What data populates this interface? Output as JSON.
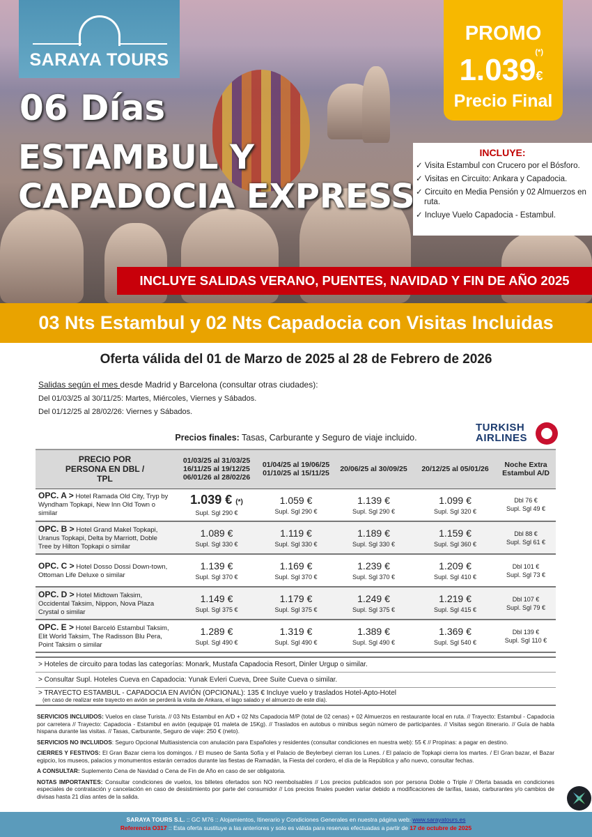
{
  "brand": {
    "name": "SARAYA TOURS"
  },
  "hero": {
    "days": "06 Días",
    "title_line1": "ESTAMBUL Y",
    "title_line2": "CAPADOCIA EXPRESS"
  },
  "promo": {
    "label": "PROMO",
    "asterisk": "(*)",
    "price": "1.039",
    "currency": "€",
    "subtitle": "Precio Final"
  },
  "includes": {
    "title": "INCLUYE:",
    "items": [
      "✓ Visita Estambul con Crucero por el Bósforo.",
      "✓ Visitas en Circuito: Ankara y Capadocia.",
      "✓ Circuito en Media Pensión y 02 Almuerzos en ruta.",
      "✓ Incluye Vuelo Capadocia - Estambul."
    ]
  },
  "red_banner": "INCLUYE SALIDAS VERANO, PUENTES, NAVIDAD Y FIN DE AÑO 2025",
  "orange_banner": "03 Nts Estambul y 02 Nts Capadocia con Visitas Incluidas",
  "validity": "Oferta válida del 01 de Marzo de 2025 al 28 de Febrero de 2026",
  "departures": {
    "intro_underlined": "Salidas según el mes ",
    "intro_rest": "desde Madrid y Barcelona (consultar otras ciudades):",
    "line1": "Del 01/03/25 al 30/11/25: Martes, Miércoles, Viernes y Sábados.",
    "line2": "Del 01/12/25 al 28/02/26: Viernes y Sábados."
  },
  "prices_note": {
    "bold": "Precios finales:",
    "rest": " Tasas, Carburante y Seguro de viaje incluido."
  },
  "airline": {
    "line1": "TURKISH",
    "line2": "AIRLINES",
    "color": "#c8102e"
  },
  "table": {
    "headers": [
      "PRECIO POR PERSONA EN DBL / TPL",
      "01/03/25 al 31/03/25\n16/11/25 al 19/12/25\n06/01/26 al 28/02/26",
      "01/04/25 al 19/06/25\n01/10/25 al 15/11/25",
      "20/06/25 al 30/09/25",
      "20/12/25 al 05/01/26",
      "Noche Extra\nEstambul A/D"
    ],
    "rows": [
      {
        "opt": "OPC. A >",
        "hotels": "Hotel Ramada Old City, Tryp by Wyndham Topkapi, New Inn Old Town o similar",
        "prices": [
          [
            "1.039 €",
            "Supl. Sgl 290 €"
          ],
          [
            "1.059 €",
            "Supl. Sgl 290 €"
          ],
          [
            "1.139 €",
            "Supl. Sgl 290 €"
          ],
          [
            "1.099 €",
            "Supl. Sgl 320 €"
          ]
        ],
        "extra": [
          "Dbl 76 €",
          "Supl. Sgl 49 €"
        ],
        "mark": "(*)"
      },
      {
        "opt": "OPC. B >",
        "hotels": "Hotel Grand Makel Topkapi, Uranus Topkapi, Delta by Marriott, Doble Tree by Hilton Topkapi o similar",
        "prices": [
          [
            "1.089 €",
            "Supl. Sgl 330 €"
          ],
          [
            "1.119 €",
            "Supl. Sgl 330 €"
          ],
          [
            "1.189 €",
            "Supl. Sgl 330 €"
          ],
          [
            "1.159 €",
            "Supl. Sgl 360 €"
          ]
        ],
        "extra": [
          "Dbl 88 €",
          "Supl. Sgl 61 €"
        ]
      },
      {
        "opt": "OPC. C >",
        "hotels": "Hotel Dosso Dossi Down-town, Ottoman Life Deluxe o similar",
        "prices": [
          [
            "1.139 €",
            "Supl. Sgl 370 €"
          ],
          [
            "1.169 €",
            "Supl. Sgl 370 €"
          ],
          [
            "1.239 €",
            "Supl. Sgl 370 €"
          ],
          [
            "1.209 €",
            "Supl. Sgl 410 €"
          ]
        ],
        "extra": [
          "Dbl 101 €",
          "Supl. Sgl 73 €"
        ]
      },
      {
        "opt": "OPC. D >",
        "hotels": "Hotel Midtown Taksim, Occidental Taksim, Nippon, Nova Plaza Crystal o similar",
        "prices": [
          [
            "1.149 €",
            "Supl. Sgl 375 €"
          ],
          [
            "1.179 €",
            "Supl. Sgl 375 €"
          ],
          [
            "1.249 €",
            "Supl. Sgl 375 €"
          ],
          [
            "1.219 €",
            "Supl. Sgl 415 €"
          ]
        ],
        "extra": [
          "Dbl 107 €",
          "Supl. Sgl 79 €"
        ]
      },
      {
        "opt": "OPC. E >",
        "hotels": "Hotel Barceló Estambul Taksim, Elit World Taksim, The Radisson Blu Pera, Point Taksim o similar",
        "prices": [
          [
            "1.289 €",
            "Supl. Sgl 490 €"
          ],
          [
            "1.319 €",
            "Supl. Sgl 490 €"
          ],
          [
            "1.389 €",
            "Supl. Sgl 490 €"
          ],
          [
            "1.369 €",
            "Supl. Sgl 540 €"
          ]
        ],
        "extra": [
          "Dbl 139 €",
          "Supl. Sgl 110 €"
        ]
      }
    ]
  },
  "notes": [
    "> Hoteles de circuito para todas las categorías: Monark, Mustafa Capadocia Resort, Dinler Urgup o similar.",
    "> Consultar Supl. Hoteles Cueva en Capadocia: Yunak Evleri Cueva, Dree Suite Cueva o similar.",
    "> TRAYECTO ESTAMBUL - CAPADOCIA EN AVIÓN (OPCIONAL): 135 € Incluye vuelo y traslados Hotel-Apto-Hotel"
  ],
  "notes_sub": "(en caso de realizar este trayecto en avión se perderá la visita de Ankara, el lago salado y el almuerzo de este día).",
  "fine_print": [
    {
      "label": "SERVICIOS INCLUIDOS:",
      "text": " Vuelos en clase Turista. // 03 Nts Estambul en A/D + 02 Nts Capadocia M/P (total de 02 cenas) + 02 Almuerzos en restaurante local en ruta. // Trayecto: Estambul - Capadocia por carretera // Trayecto: Capadocia - Estambul en avión (equipaje 01 maleta de 15Kg). // Traslados en autobus o minibus según número de participantes. // Visitas según itinerario. // Guía de habla hispana durante las visitas. // Tasas, Carburante, Seguro de viaje: 250 € (neto)."
    },
    {
      "label": "SERVICIOS NO INCLUIDOS",
      "text": ": Seguro Opcional Multiasistencia con anulación para Españoles y residentes (consultar condiciones en nuestra web): 55 € // Propinas: a pagar en destino."
    },
    {
      "label": "CIERRES Y FESTIVOS:",
      "text": " El Gran Bazar cierra los domingos. / El museo de Santa Sofía y el Palacio de Beylerbeyi cierran los Lunes. / El palacio de Topkapi cierra los martes. / El Gran bazar, el Bazar egipcio, los museos, palacios y monumentos estarán cerrados durante las fiestas de Ramadán, la Fiesta del cordero, el día de la República y año nuevo, consultar fechas."
    },
    {
      "label": "A CONSULTAR:",
      "text": " Suplemento Cena de Navidad o Cena de Fin de Año en caso de ser obligatoria."
    },
    {
      "label": "NOTAS IMPORTANTES:",
      "text": " Consultar condiciones de vuelos, los billetes ofertados son NO reembolsables // Los precios publicados son por persona Doble o Triple // Oferta basada en condiciones especiales de contratación y cancelación en caso de desistimiento por parte del consumidor // Los precios finales pueden variar debido a modificaciones de tarifas, tasas, carburantes y/o cambios de divisas hasta 21 días antes de la salida."
    }
  ],
  "footer": {
    "company": "SARAYA TOURS S.L.",
    "line1_rest": " :: GC M76 ::  Alojamientos, Itinerario y Condiciones Generales en nuestra página web:  ",
    "website": "www.sarayatours.es",
    "reference": "Referencia O317",
    "line2_mid": " :: Esta oferta sustituye a las anteriores y solo es válida para reservas efectuadas a partir de ",
    "date": "17 de octubre de 2025"
  },
  "colors": {
    "brand_blue": "#5b9bbb",
    "promo_yellow": "#f7b800",
    "banner_red": "#c8000a",
    "banner_orange": "#e9a300"
  }
}
